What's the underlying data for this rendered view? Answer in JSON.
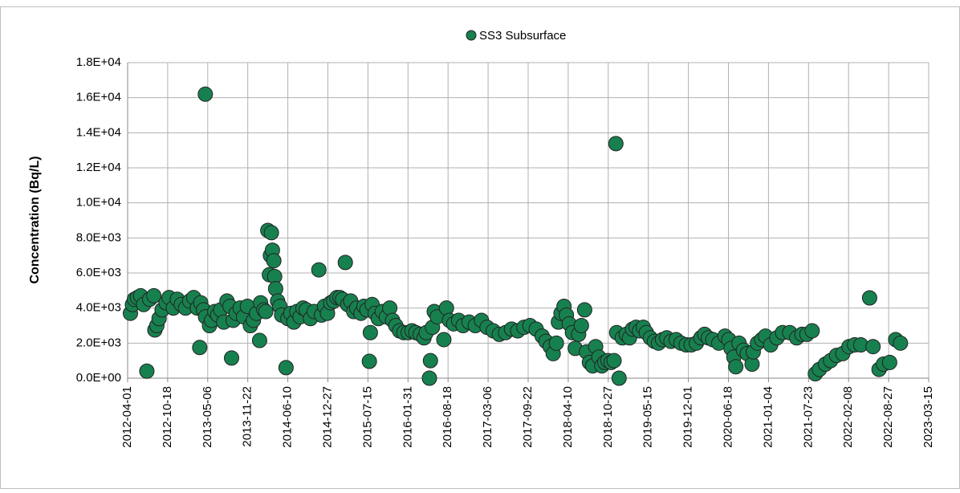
{
  "chart_data": {
    "type": "scatter",
    "y_label": "Concentration (Bq/L)",
    "legend": "top",
    "grid": true,
    "xlim": [
      "2012-04-01",
      "2023-03-15"
    ],
    "xticks": [
      "2012-04-01",
      "2012-10-18",
      "2013-05-06",
      "2013-11-22",
      "2014-06-10",
      "2014-12-27",
      "2015-07-15",
      "2016-01-31",
      "2016-08-18",
      "2017-03-06",
      "2017-09-22",
      "2018-04-10",
      "2018-10-27",
      "2019-05-15",
      "2019-12-01",
      "2020-06-18",
      "2021-01-04",
      "2021-07-23",
      "2022-02-08",
      "2022-08-27",
      "2023-03-15"
    ],
    "ylim": [
      0,
      18000
    ],
    "yticks": [
      {
        "value": 0,
        "label": "0.0E+00"
      },
      {
        "value": 2000,
        "label": "2.0E+03"
      },
      {
        "value": 4000,
        "label": "4.0E+03"
      },
      {
        "value": 6000,
        "label": "6.0E+03"
      },
      {
        "value": 8000,
        "label": "8.0E+03"
      },
      {
        "value": 10000,
        "label": "1.0E+04"
      },
      {
        "value": 12000,
        "label": "1.2E+04"
      },
      {
        "value": 14000,
        "label": "1.4E+04"
      },
      {
        "value": 16000,
        "label": "1.6E+04"
      },
      {
        "value": 18000,
        "label": "1.8E+04"
      }
    ],
    "series": [
      {
        "name": "SS3 Subsurface",
        "color": "#17804f",
        "x": [
          "2012-04-15",
          "2012-04-25",
          "2012-05-05",
          "2012-05-20",
          "2012-06-05",
          "2012-06-20",
          "2012-07-06",
          "2012-07-20",
          "2012-08-10",
          "2012-08-15",
          "2012-08-25",
          "2012-09-05",
          "2012-09-20",
          "2012-10-10",
          "2012-10-25",
          "2012-11-15",
          "2012-12-05",
          "2012-12-25",
          "2013-01-15",
          "2013-02-05",
          "2013-02-25",
          "2013-03-15",
          "2013-03-27",
          "2013-04-01",
          "2013-04-15",
          "2013-04-24",
          "2013-04-25",
          "2013-05-15",
          "2013-05-25",
          "2013-06-10",
          "2013-06-25",
          "2013-07-10",
          "2013-07-25",
          "2013-08-10",
          "2013-08-25",
          "2013-09-02",
          "2013-09-10",
          "2013-09-25",
          "2013-10-15",
          "2013-11-01",
          "2013-11-20",
          "2013-12-05",
          "2013-12-20",
          "2014-01-05",
          "2014-01-20",
          "2014-01-25",
          "2014-02-10",
          "2014-02-20",
          "2014-03-02",
          "2014-03-10",
          "2014-03-15",
          "2014-03-20",
          "2014-03-25",
          "2014-04-01",
          "2014-04-05",
          "2014-04-10",
          "2014-04-20",
          "2014-05-01",
          "2014-05-10",
          "2014-06-01",
          "2014-06-10",
          "2014-06-25",
          "2014-07-10",
          "2014-07-25",
          "2014-08-10",
          "2014-08-25",
          "2014-09-10",
          "2014-10-01",
          "2014-10-20",
          "2014-11-12",
          "2014-11-25",
          "2014-12-10",
          "2014-12-25",
          "2015-01-10",
          "2015-01-25",
          "2015-02-10",
          "2015-02-25",
          "2015-03-10",
          "2015-03-24",
          "2015-04-05",
          "2015-04-20",
          "2015-05-05",
          "2015-05-20",
          "2015-06-10",
          "2015-06-25",
          "2015-07-10",
          "2015-07-22",
          "2015-07-27",
          "2015-08-05",
          "2015-08-20",
          "2015-09-05",
          "2015-09-25",
          "2015-10-15",
          "2015-11-01",
          "2015-11-15",
          "2015-12-01",
          "2015-12-20",
          "2016-01-10",
          "2016-02-01",
          "2016-02-20",
          "2016-03-10",
          "2016-04-01",
          "2016-04-20",
          "2016-05-01",
          "2016-05-17",
          "2016-05-22",
          "2016-06-01",
          "2016-06-10",
          "2016-06-25",
          "2016-07-28",
          "2016-08-10",
          "2016-08-25",
          "2016-09-15",
          "2016-10-10",
          "2016-11-01",
          "2016-12-01",
          "2017-01-01",
          "2017-02-01",
          "2017-03-01",
          "2017-04-01",
          "2017-05-01",
          "2017-06-01",
          "2017-07-01",
          "2017-08-01",
          "2017-09-01",
          "2017-10-01",
          "2017-11-01",
          "2017-12-01",
          "2017-12-20",
          "2018-01-10",
          "2018-01-25",
          "2018-02-10",
          "2018-02-20",
          "2018-03-05",
          "2018-03-20",
          "2018-04-01",
          "2018-04-15",
          "2018-05-01",
          "2018-05-15",
          "2018-06-01",
          "2018-06-15",
          "2018-07-01",
          "2018-07-10",
          "2018-07-25",
          "2018-08-10",
          "2018-08-25",
          "2018-09-10",
          "2018-09-25",
          "2018-10-10",
          "2018-10-25",
          "2018-11-10",
          "2018-11-25",
          "2018-12-04",
          "2018-12-08",
          "2018-12-20",
          "2019-01-05",
          "2019-01-25",
          "2019-02-10",
          "2019-02-25",
          "2019-03-15",
          "2019-04-01",
          "2019-04-20",
          "2019-05-05",
          "2019-05-25",
          "2019-06-15",
          "2019-07-05",
          "2019-07-25",
          "2019-08-15",
          "2019-09-05",
          "2019-10-01",
          "2019-10-25",
          "2019-11-20",
          "2019-12-15",
          "2020-01-10",
          "2020-02-01",
          "2020-02-20",
          "2020-03-10",
          "2020-04-01",
          "2020-05-01",
          "2020-06-01",
          "2020-06-20",
          "2020-07-01",
          "2020-07-15",
          "2020-07-25",
          "2020-08-10",
          "2020-09-01",
          "2020-09-20",
          "2020-10-14",
          "2020-10-20",
          "2020-11-10",
          "2020-12-01",
          "2020-12-20",
          "2021-01-15",
          "2021-02-15",
          "2021-03-15",
          "2021-04-20",
          "2021-05-25",
          "2021-06-20",
          "2021-07-15",
          "2021-08-10",
          "2021-08-26",
          "2021-09-15",
          "2021-10-15",
          "2021-11-10",
          "2021-12-10",
          "2022-01-10",
          "2022-02-10",
          "2022-03-10",
          "2022-04-10",
          "2022-05-24",
          "2022-06-10",
          "2022-07-10",
          "2022-08-01",
          "2022-09-01",
          "2022-10-01",
          "2022-10-25"
        ],
        "values": [
          3700,
          4200,
          4500,
          4600,
          4700,
          4200,
          400,
          4500,
          4700,
          2750,
          3000,
          3400,
          3900,
          4300,
          4600,
          4000,
          4500,
          4200,
          4000,
          4400,
          4600,
          4000,
          1750,
          4300,
          3900,
          16200,
          3500,
          3000,
          3300,
          3800,
          3600,
          3900,
          3200,
          4400,
          4100,
          1150,
          3300,
          3700,
          4000,
          3500,
          4100,
          3000,
          3300,
          3700,
          2150,
          4300,
          3900,
          3800,
          8430,
          5900,
          7000,
          8300,
          7300,
          6700,
          5800,
          5100,
          4400,
          4100,
          3600,
          600,
          3400,
          3700,
          3200,
          3800,
          3500,
          4000,
          3900,
          3400,
          3800,
          6180,
          3600,
          4100,
          3700,
          4300,
          4400,
          4600,
          4600,
          4500,
          6600,
          4200,
          4400,
          3800,
          4000,
          3700,
          4100,
          3900,
          960,
          2600,
          4200,
          3700,
          3400,
          3800,
          3500,
          4000,
          3300,
          3000,
          2700,
          2600,
          2600,
          2700,
          2600,
          2500,
          2300,
          2600,
          0,
          1000,
          2900,
          3800,
          3500,
          2200,
          4000,
          3300,
          3100,
          3300,
          3000,
          3200,
          3000,
          3300,
          2900,
          2700,
          2500,
          2600,
          2800,
          2700,
          2900,
          3000,
          2800,
          2400,
          2100,
          1800,
          1400,
          2000,
          3200,
          3700,
          4100,
          3600,
          3100,
          2600,
          1700,
          2500,
          3000,
          3900,
          1500,
          900,
          700,
          1800,
          1200,
          700,
          900,
          1000,
          900,
          1000,
          13380,
          2600,
          0,
          2300,
          2500,
          2300,
          2800,
          2900,
          2700,
          2900,
          2600,
          2300,
          2100,
          2000,
          2200,
          2300,
          2100,
          2200,
          2000,
          1900,
          1900,
          2000,
          2300,
          2500,
          2300,
          2200,
          2000,
          2400,
          2200,
          1700,
          1200,
          650,
          2000,
          1600,
          1400,
          800,
          1500,
          2000,
          2200,
          2400,
          1900,
          2300,
          2600,
          2600,
          2300,
          2500,
          2500,
          2700,
          250,
          500,
          800,
          1000,
          1300,
          1400,
          1800,
          1900,
          1900,
          4580,
          1800,
          500,
          800,
          900,
          2200,
          2000
        ]
      }
    ]
  }
}
